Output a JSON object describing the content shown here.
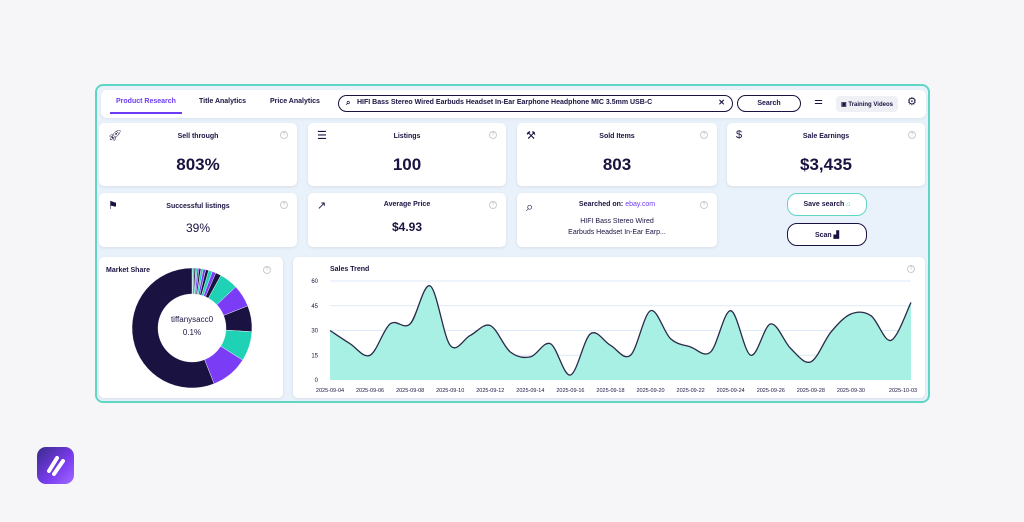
{
  "tabs": [
    "Product Research",
    "Title Analytics",
    "Price Analytics"
  ],
  "search": {
    "value": "HIFI Bass Stereo Wired Earbuds Headset In-Ear Earphone Headphone MIC 3.5mm USB-C",
    "button": "Search"
  },
  "training": "Training Videos",
  "cards": {
    "sell_through": {
      "title": "Sell through",
      "value": "803%"
    },
    "listings": {
      "title": "Listings",
      "value": "100"
    },
    "sold": {
      "title": "Sold Items",
      "value": "803"
    },
    "earnings": {
      "title": "Sale Earnings",
      "value": "$3,435"
    },
    "successful": {
      "title": "Successful listings",
      "value": "39%"
    },
    "avg_price": {
      "title": "Average Price",
      "value": "$4.93"
    },
    "searched": {
      "title": "Searched on:",
      "site": "ebay.com",
      "line1": "HIFI Bass Stereo Wired",
      "line2": "Earbuds Headset In-Ear Earp..."
    }
  },
  "actions": {
    "save": "Save search",
    "scan": "Scan"
  },
  "market_share": {
    "title": "Market Share",
    "center_name": "tiffanysacc0",
    "center_value": "0.1%",
    "colors": [
      "#1a1240",
      "#7b3cf5",
      "#1fd1b5"
    ]
  },
  "chart_data": {
    "type": "area",
    "title": "Sales Trend",
    "ylim": [
      0,
      60
    ],
    "yticks": [
      0,
      15,
      30,
      45,
      60
    ],
    "grid": true,
    "x": [
      "2025-09-04",
      "2025-09-05",
      "2025-09-06",
      "2025-09-07",
      "2025-09-08",
      "2025-09-09",
      "2025-09-10",
      "2025-09-11",
      "2025-09-12",
      "2025-09-13",
      "2025-09-14",
      "2025-09-15",
      "2025-09-16",
      "2025-09-17",
      "2025-09-18",
      "2025-09-19",
      "2025-09-20",
      "2025-09-21",
      "2025-09-22",
      "2025-09-23",
      "2025-09-24",
      "2025-09-25",
      "2025-09-26",
      "2025-09-27",
      "2025-09-28",
      "2025-09-29",
      "2025-09-30",
      "2025-10-01",
      "2025-10-02",
      "2025-10-03"
    ],
    "xticks": [
      "2025-09-04",
      "2025-09-06",
      "2025-09-08",
      "2025-09-10",
      "2025-09-12",
      "2025-09-14",
      "2025-09-16",
      "2025-09-18",
      "2025-09-20",
      "2025-09-22",
      "2025-09-24",
      "2025-09-26",
      "2025-09-28",
      "2025-09-30",
      "2025-10-03"
    ],
    "values": [
      30,
      22,
      15,
      34,
      34,
      57,
      21,
      27,
      33,
      17,
      14,
      22,
      3,
      28,
      21,
      15,
      42,
      25,
      20,
      17,
      42,
      15,
      34,
      19,
      11,
      29,
      40,
      39,
      24,
      47
    ],
    "fill": "#a8efe4",
    "line": "#2a2a4a"
  }
}
